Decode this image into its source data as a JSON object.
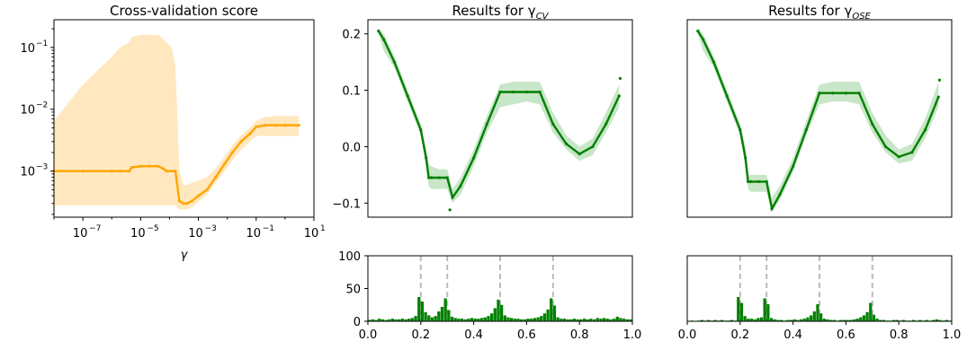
{
  "chart_data": [
    {
      "type": "line",
      "title": "Cross-validation score",
      "xlabel": "γ",
      "ylabel": "",
      "xscale": "log",
      "yscale": "log",
      "xlim": [
        1e-08,
        10
      ],
      "ylim": [
        0.00018,
        0.28
      ],
      "x_tick_labels": [
        "10",
        "10",
        "10",
        "10",
        "10"
      ],
      "x_tick_exponents": [
        "−7",
        "−5",
        "−3",
        "−1",
        "1"
      ],
      "y_tick_labels": [
        "10",
        "10",
        "10"
      ],
      "y_tick_exponents": [
        "−3",
        "−2",
        "−1"
      ],
      "colors": {
        "line": "#ffa500",
        "band": "#ffe8bf"
      },
      "series": [
        {
          "x": [
            1e-08,
            1e-07,
            1e-06,
            2e-06,
            4e-06,
            5e-06,
            1e-05,
            2e-05,
            4e-05,
            6e-05,
            8e-05,
            0.00012,
            0.00016,
            0.00022,
            0.0003,
            0.0004,
            0.0006,
            0.001,
            0.002,
            0.004,
            0.008,
            0.015,
            0.03,
            0.06,
            0.1,
            0.2,
            0.5,
            1,
            3
          ],
          "y": [
            0.001,
            0.001,
            0.001,
            0.001,
            0.001,
            0.00115,
            0.0012,
            0.0012,
            0.0012,
            0.0011,
            0.001,
            0.001,
            0.001,
            0.00033,
            0.0003,
            0.0003,
            0.00033,
            0.0004,
            0.0005,
            0.0008,
            0.0013,
            0.002,
            0.003,
            0.004,
            0.0052,
            0.0055,
            0.0055,
            0.0055,
            0.0055
          ],
          "band_low": [
            0.00028,
            0.00028,
            0.00028,
            0.00028,
            0.00028,
            0.00028,
            0.00028,
            0.00028,
            0.00028,
            0.00028,
            0.00028,
            0.00028,
            0.00028,
            0.00024,
            0.00024,
            0.00024,
            0.00026,
            0.00032,
            0.00042,
            0.00065,
            0.001,
            0.0015,
            0.0022,
            0.003,
            0.0037,
            0.0037,
            0.0037,
            0.0037,
            0.0037
          ],
          "band_high": [
            0.0065,
            0.025,
            0.07,
            0.1,
            0.12,
            0.15,
            0.16,
            0.16,
            0.16,
            0.14,
            0.12,
            0.1,
            0.05,
            0.001,
            0.0006,
            0.0006,
            0.00065,
            0.0007,
            0.0008,
            0.0011,
            0.0017,
            0.0026,
            0.0038,
            0.005,
            0.0065,
            0.0075,
            0.0078,
            0.0078,
            0.0078
          ]
        }
      ]
    },
    {
      "type": "line",
      "title": "Results for γ",
      "title_subscript": "CV",
      "xlim": [
        0,
        1
      ],
      "ylim": [
        -0.125,
        0.225
      ],
      "y_ticks": [
        -0.1,
        0.0,
        0.1,
        0.2
      ],
      "y_tick_labels": [
        "−0.1",
        "0.0",
        "0.1",
        "0.2"
      ],
      "colors": {
        "line": "#008000",
        "band": "#c8e6c8"
      },
      "series": [
        {
          "x": [
            0.04,
            0.06,
            0.1,
            0.15,
            0.2,
            0.22,
            0.23,
            0.24,
            0.27,
            0.3,
            0.32,
            0.35,
            0.4,
            0.45,
            0.5,
            0.55,
            0.6,
            0.65,
            0.7,
            0.75,
            0.8,
            0.85,
            0.9,
            0.95
          ],
          "y": [
            0.205,
            0.19,
            0.15,
            0.09,
            0.03,
            -0.02,
            -0.055,
            -0.055,
            -0.055,
            -0.055,
            -0.09,
            -0.07,
            -0.02,
            0.04,
            0.097,
            0.097,
            0.097,
            0.097,
            0.04,
            0.005,
            -0.013,
            0.0,
            0.04,
            0.09
          ],
          "band_low": [
            0.2,
            0.17,
            0.14,
            0.08,
            0.02,
            -0.035,
            -0.07,
            -0.075,
            -0.075,
            -0.075,
            -0.1,
            -0.085,
            -0.035,
            0.025,
            0.07,
            0.075,
            0.08,
            0.075,
            0.025,
            -0.005,
            -0.025,
            -0.015,
            0.025,
            0.07
          ],
          "band_high": [
            0.21,
            0.2,
            0.16,
            0.1,
            0.04,
            -0.005,
            -0.03,
            -0.035,
            -0.04,
            -0.04,
            -0.075,
            -0.055,
            -0.005,
            0.055,
            0.11,
            0.115,
            0.115,
            0.115,
            0.06,
            0.02,
            0.0,
            0.015,
            0.06,
            0.11
          ]
        }
      ],
      "outliers": [
        [
          0.31,
          -0.112
        ],
        [
          0.954,
          0.121
        ]
      ]
    },
    {
      "type": "line",
      "title": "Results for γ",
      "title_subscript": "OSE",
      "xlim": [
        0,
        1
      ],
      "ylim": [
        -0.125,
        0.225
      ],
      "colors": {
        "line": "#008000",
        "band": "#c8e6c8"
      },
      "series": [
        {
          "x": [
            0.04,
            0.06,
            0.1,
            0.15,
            0.2,
            0.22,
            0.23,
            0.24,
            0.27,
            0.3,
            0.32,
            0.35,
            0.4,
            0.45,
            0.5,
            0.55,
            0.6,
            0.65,
            0.7,
            0.75,
            0.8,
            0.85,
            0.9,
            0.95
          ],
          "y": [
            0.205,
            0.19,
            0.15,
            0.09,
            0.03,
            -0.02,
            -0.062,
            -0.062,
            -0.062,
            -0.062,
            -0.11,
            -0.085,
            -0.035,
            0.03,
            0.095,
            0.095,
            0.095,
            0.095,
            0.04,
            0.0,
            -0.018,
            -0.01,
            0.03,
            0.088
          ],
          "band_low": [
            0.2,
            0.17,
            0.14,
            0.08,
            0.02,
            -0.035,
            -0.075,
            -0.08,
            -0.08,
            -0.08,
            -0.115,
            -0.095,
            -0.045,
            0.02,
            0.075,
            0.08,
            0.08,
            0.075,
            0.025,
            -0.01,
            -0.03,
            -0.025,
            0.015,
            0.07
          ],
          "band_high": [
            0.21,
            0.2,
            0.16,
            0.1,
            0.04,
            0.0,
            -0.05,
            -0.05,
            -0.05,
            -0.05,
            -0.09,
            -0.07,
            -0.02,
            0.045,
            0.11,
            0.115,
            0.115,
            0.115,
            0.06,
            0.02,
            -0.005,
            0.005,
            0.05,
            0.115
          ]
        }
      ],
      "outliers": [
        [
          0.954,
          0.118
        ]
      ]
    },
    {
      "type": "bar",
      "xlim": [
        0,
        1
      ],
      "ylim": [
        0,
        100
      ],
      "x_ticks": [
        0.0,
        0.2,
        0.4,
        0.6,
        0.8,
        1.0
      ],
      "x_tick_labels": [
        "0.0",
        "0.2",
        "0.4",
        "0.6",
        "0.8",
        "1.0"
      ],
      "y_ticks": [
        0,
        50,
        100
      ],
      "y_tick_labels": [
        "0",
        "50",
        "100"
      ],
      "reference_lines": [
        0.2,
        0.3,
        0.5,
        0.7
      ],
      "colors": {
        "bar": "#008000",
        "reference": "#bbbbbb"
      },
      "bin_width": 0.0125,
      "bin_centers": [
        0.00625,
        0.01875,
        0.03125,
        0.04375,
        0.05625,
        0.06875,
        0.08125,
        0.09375,
        0.10625,
        0.11875,
        0.13125,
        0.14375,
        0.15625,
        0.16875,
        0.18125,
        0.19375,
        0.20625,
        0.21875,
        0.23125,
        0.24375,
        0.25625,
        0.26875,
        0.28125,
        0.29375,
        0.30625,
        0.31875,
        0.33125,
        0.34375,
        0.35625,
        0.36875,
        0.38125,
        0.39375,
        0.40625,
        0.41875,
        0.43125,
        0.44375,
        0.45625,
        0.46875,
        0.48125,
        0.49375,
        0.50625,
        0.51875,
        0.53125,
        0.54375,
        0.55625,
        0.56875,
        0.58125,
        0.59375,
        0.60625,
        0.61875,
        0.63125,
        0.64375,
        0.65625,
        0.66875,
        0.68125,
        0.69375,
        0.70625,
        0.71875,
        0.73125,
        0.74375,
        0.75625,
        0.76875,
        0.78125,
        0.79375,
        0.80625,
        0.81875,
        0.83125,
        0.84375,
        0.85625,
        0.86875,
        0.88125,
        0.89375,
        0.90625,
        0.91875,
        0.93125,
        0.94375,
        0.95625,
        0.96875,
        0.98125,
        0.99375
      ],
      "values": [
        2,
        3,
        2,
        4,
        3,
        2,
        3,
        4,
        3,
        3,
        4,
        3,
        4,
        5,
        8,
        37,
        30,
        14,
        9,
        6,
        8,
        15,
        22,
        35,
        17,
        7,
        5,
        4,
        4,
        3,
        4,
        5,
        4,
        4,
        5,
        6,
        8,
        12,
        20,
        33,
        25,
        9,
        6,
        5,
        4,
        4,
        3,
        3,
        4,
        4,
        5,
        6,
        8,
        12,
        18,
        35,
        24,
        6,
        4,
        4,
        3,
        3,
        4,
        3,
        3,
        4,
        3,
        4,
        3,
        5,
        4,
        5,
        4,
        3,
        4,
        7,
        5,
        4,
        3,
        3
      ]
    },
    {
      "type": "bar",
      "xlim": [
        0,
        1
      ],
      "ylim": [
        0,
        100
      ],
      "x_ticks": [
        0.0,
        0.2,
        0.4,
        0.6,
        0.8,
        1.0
      ],
      "x_tick_labels": [
        "0.0",
        "0.2",
        "0.4",
        "0.6",
        "0.8",
        "1.0"
      ],
      "reference_lines": [
        0.2,
        0.3,
        0.5,
        0.7
      ],
      "colors": {
        "bar": "#008000",
        "reference": "#bbbbbb"
      },
      "bin_width": 0.0125,
      "bin_centers": [
        0.00625,
        0.01875,
        0.03125,
        0.04375,
        0.05625,
        0.06875,
        0.08125,
        0.09375,
        0.10625,
        0.11875,
        0.13125,
        0.14375,
        0.15625,
        0.16875,
        0.18125,
        0.19375,
        0.20625,
        0.21875,
        0.23125,
        0.24375,
        0.25625,
        0.26875,
        0.28125,
        0.29375,
        0.30625,
        0.31875,
        0.33125,
        0.34375,
        0.35625,
        0.36875,
        0.38125,
        0.39375,
        0.40625,
        0.41875,
        0.43125,
        0.44375,
        0.45625,
        0.46875,
        0.48125,
        0.49375,
        0.50625,
        0.51875,
        0.53125,
        0.54375,
        0.55625,
        0.56875,
        0.58125,
        0.59375,
        0.60625,
        0.61875,
        0.63125,
        0.64375,
        0.65625,
        0.66875,
        0.68125,
        0.69375,
        0.70625,
        0.71875,
        0.73125,
        0.74375,
        0.75625,
        0.76875,
        0.78125,
        0.79375,
        0.80625,
        0.81875,
        0.83125,
        0.84375,
        0.85625,
        0.86875,
        0.88125,
        0.89375,
        0.90625,
        0.91875,
        0.93125,
        0.94375,
        0.95625,
        0.96875,
        0.98125,
        0.99375
      ],
      "values": [
        0,
        1,
        0,
        1,
        2,
        1,
        2,
        1,
        2,
        1,
        2,
        1,
        1,
        2,
        1,
        37,
        28,
        8,
        4,
        4,
        3,
        5,
        6,
        35,
        26,
        5,
        3,
        2,
        2,
        1,
        2,
        2,
        3,
        2,
        3,
        4,
        6,
        9,
        15,
        26,
        12,
        4,
        3,
        2,
        2,
        1,
        2,
        2,
        2,
        2,
        3,
        4,
        6,
        9,
        14,
        28,
        10,
        4,
        2,
        2,
        1,
        1,
        2,
        2,
        1,
        2,
        1,
        1,
        2,
        1,
        2,
        1,
        2,
        1,
        2,
        3,
        2,
        1,
        2,
        1
      ]
    }
  ]
}
